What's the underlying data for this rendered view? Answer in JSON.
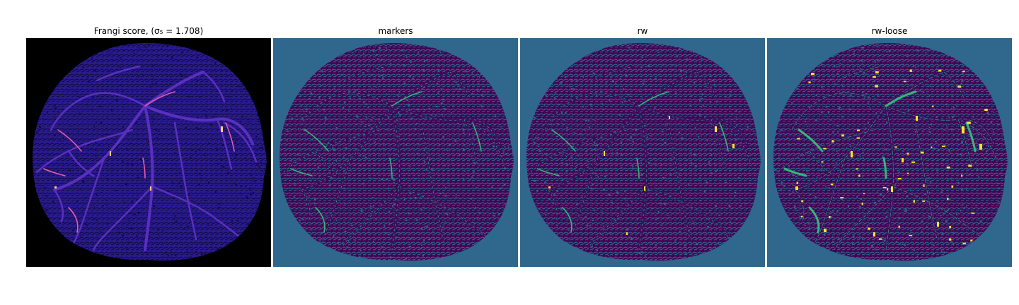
{
  "panels": [
    {
      "title": "Frangi score, (σ₅ = 1.708)",
      "colors": {
        "background": "#000000",
        "disk": "#2a1b8f",
        "texture": "#100a45",
        "vessel": "#5a2fc0",
        "vessel_bright": "#e85aa8",
        "vessel_hot": "#fbd36a"
      }
    },
    {
      "title": "markers",
      "colors": {
        "background": "#30678d",
        "disk": "#440154",
        "texture": "#30678d",
        "vessel": "#3b0f61",
        "vessel_bright": "#35b779",
        "vessel_hot": "#35b779"
      }
    },
    {
      "title": "rw",
      "colors": {
        "background": "#30678d",
        "disk": "#440154",
        "texture": "#30678d",
        "vessel": "#3b0f61",
        "vessel_bright": "#35b779",
        "vessel_hot": "#fde725"
      }
    },
    {
      "title": "rw-loose",
      "colors": {
        "background": "#30678d",
        "disk": "#440154",
        "texture": "#30678d",
        "vessel": "#3b0f61",
        "vessel_bright": "#35b779",
        "vessel_hot": "#fde725"
      }
    }
  ]
}
